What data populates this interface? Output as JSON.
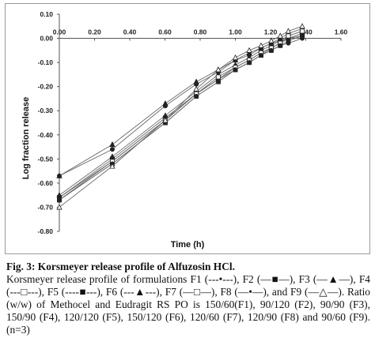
{
  "chart_data": {
    "type": "line",
    "xlabel": "Time (h)",
    "ylabel": "Log fraction release",
    "xlim": [
      0,
      1.6
    ],
    "ylim": [
      -0.8,
      0.1
    ],
    "x_ticks": [
      "0.00",
      "0.20",
      "0.40",
      "0.60",
      "0.80",
      "1.00",
      "1.20",
      "1.40",
      "1.60"
    ],
    "y_ticks": [
      "0.10",
      "0.00",
      "-0.10",
      "-0.20",
      "-0.30",
      "-0.40",
      "-0.50",
      "-0.60",
      "-0.70",
      "-0.80"
    ],
    "grid": false,
    "legend": "none",
    "x": [
      0,
      0.301,
      0.602,
      0.778,
      0.903,
      1.0,
      1.079,
      1.146,
      1.204,
      1.255,
      1.301,
      1.38
    ],
    "series": [
      {
        "marker": "circle-filled",
        "values": [
          -0.57,
          -0.46,
          -0.28,
          -0.19,
          -0.14,
          -0.09,
          -0.07,
          -0.04,
          -0.02,
          -0.01,
          0.0,
          0.01
        ]
      },
      {
        "marker": "square-filled",
        "values": [
          -0.66,
          -0.5,
          -0.33,
          -0.23,
          -0.17,
          -0.13,
          -0.1,
          -0.07,
          -0.05,
          -0.03,
          -0.01,
          0.01
        ]
      },
      {
        "marker": "triangle-filled",
        "values": [
          -0.65,
          -0.49,
          -0.32,
          -0.22,
          -0.15,
          -0.11,
          -0.08,
          -0.05,
          -0.03,
          -0.01,
          0.01,
          0.03
        ]
      },
      {
        "marker": "square-open",
        "values": [
          -0.67,
          -0.52,
          -0.35,
          -0.24,
          -0.18,
          -0.13,
          -0.1,
          -0.07,
          -0.04,
          -0.02,
          0.0,
          0.02
        ]
      },
      {
        "marker": "square-filled",
        "values": [
          -0.66,
          -0.51,
          -0.34,
          -0.23,
          -0.17,
          -0.12,
          -0.09,
          -0.06,
          -0.04,
          -0.02,
          0.0,
          0.02
        ]
      },
      {
        "marker": "triangle-filled",
        "values": [
          -0.57,
          -0.44,
          -0.27,
          -0.18,
          -0.13,
          -0.09,
          -0.06,
          -0.04,
          -0.02,
          0.0,
          0.02,
          0.04
        ]
      },
      {
        "marker": "square-open",
        "values": [
          -0.67,
          -0.51,
          -0.34,
          -0.23,
          -0.16,
          -0.12,
          -0.09,
          -0.06,
          -0.04,
          -0.02,
          0.01,
          0.03
        ]
      },
      {
        "marker": "circle-filled",
        "values": [
          -0.67,
          -0.52,
          -0.35,
          -0.24,
          -0.18,
          -0.13,
          -0.1,
          -0.07,
          -0.05,
          -0.03,
          -0.02,
          0.0
        ]
      },
      {
        "marker": "triangle-open",
        "values": [
          -0.7,
          -0.53,
          -0.34,
          -0.21,
          -0.13,
          -0.08,
          -0.05,
          -0.03,
          -0.01,
          0.01,
          0.03,
          0.05
        ]
      }
    ],
    "line_color": "#6a6a6a",
    "marker_color": "#222222"
  },
  "caption": {
    "title": "Fig. 3: Korsmeyer release profile of Alfuzosin HCl.",
    "body": "Korsmeyer release profile of formulations F1 (---•---), F2 (—■—), F3 (—▲—), F4 (---□---), F5 (----■---), F6 (---▲---), F7 (—□—), F8 (—•—), and F9 (—△—). Ratio (w/w) of Methocel and Eudragit RS PO is 150/60(F1), 90/120 (F2), 90/90 (F3), 150/90 (F4), 120/120 (F5), 150/120 (F6), 120/60 (F7), 120/90 (F8) and 90/60 (F9). (n=3)"
  }
}
